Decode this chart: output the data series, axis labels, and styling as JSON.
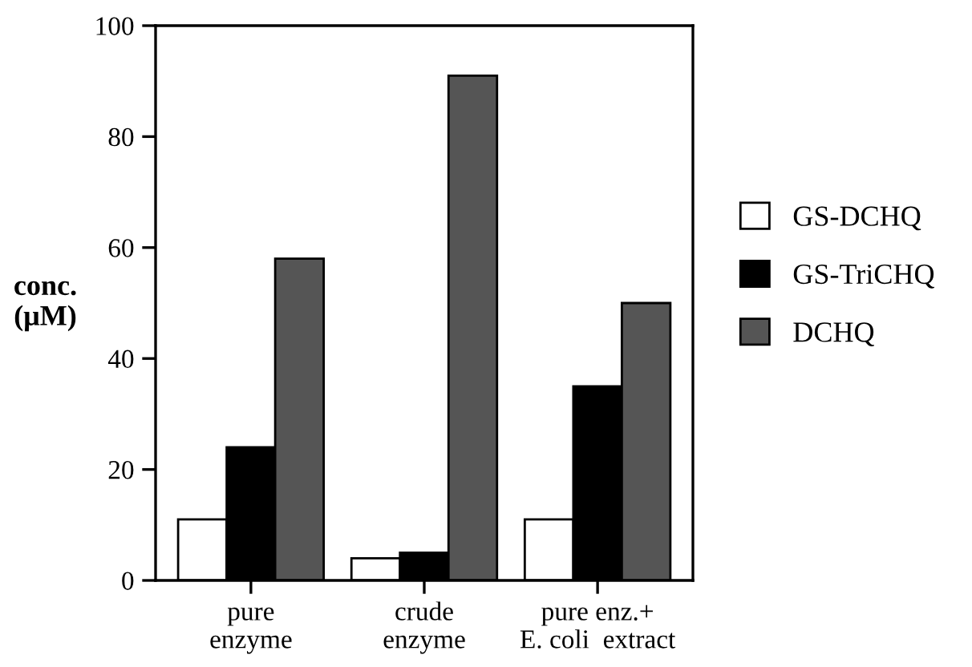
{
  "chart_data": {
    "type": "bar",
    "ylabel": "conc.\n(μM)",
    "categories": [
      "pure\nenzyme",
      "crude\nenzyme",
      "pure enz.+\nE. coli  extract"
    ],
    "series": [
      {
        "name": "GS-DCHQ",
        "color": "#ffffff",
        "values": [
          11,
          4,
          11
        ]
      },
      {
        "name": "GS-TriCHQ",
        "color": "#000000",
        "values": [
          24,
          5,
          35
        ]
      },
      {
        "name": "DCHQ",
        "color": "#555555",
        "values": [
          58,
          91,
          50
        ]
      }
    ],
    "ylim": [
      0,
      100
    ],
    "yticks": [
      0,
      20,
      40,
      60,
      80,
      100
    ],
    "grid": false,
    "legend": "right"
  }
}
